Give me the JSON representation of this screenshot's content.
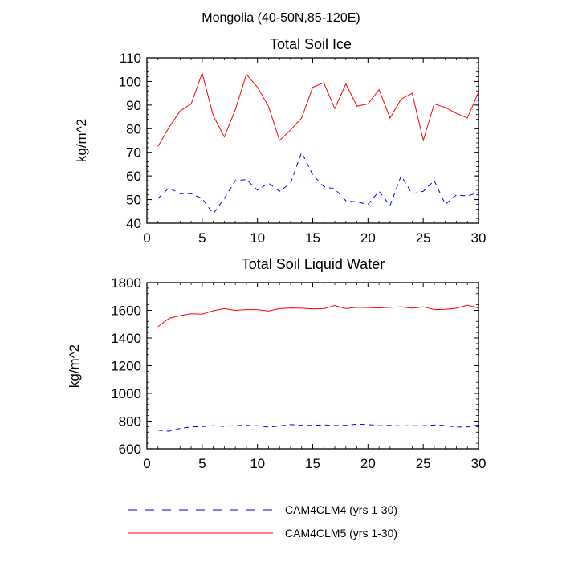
{
  "figure_title": "Mongolia (40-50N,85-120E)",
  "colors": {
    "clm4": "#0000ff",
    "clm5": "#ff0000",
    "axis": "#000000"
  },
  "chart_data": [
    {
      "type": "line",
      "title": "Total Soil Ice",
      "xlabel": "",
      "ylabel": "kg/m^2",
      "xlim": [
        0,
        30
      ],
      "ylim": [
        40,
        110
      ],
      "xticks": [
        0,
        5,
        10,
        15,
        20,
        25,
        30
      ],
      "yticks": [
        40,
        50,
        60,
        70,
        80,
        90,
        100,
        110
      ],
      "x": [
        1,
        2,
        3,
        4,
        5,
        6,
        7,
        8,
        9,
        10,
        11,
        12,
        13,
        14,
        15,
        16,
        17,
        18,
        19,
        20,
        21,
        22,
        23,
        24,
        25,
        26,
        27,
        28,
        29,
        30
      ],
      "series": [
        {
          "name": "CAM4CLM4 (yrs 1-30)",
          "style": "dashed",
          "color": "#0000ff",
          "values": [
            50.5,
            55,
            52.5,
            52.5,
            50.5,
            44,
            50.5,
            58,
            58.5,
            54,
            57,
            53.5,
            57,
            70,
            60.5,
            55.5,
            54.5,
            49.5,
            49,
            48,
            53.5,
            47.5,
            60,
            52.5,
            53.5,
            58,
            48,
            52,
            51.5,
            53
          ]
        },
        {
          "name": "CAM4CLM5 (yrs 1-30)",
          "style": "solid",
          "color": "#ff0000",
          "values": [
            72.5,
            80.5,
            87.5,
            90.5,
            103.5,
            85.5,
            76.5,
            88,
            103,
            97.5,
            89.5,
            75,
            79.5,
            84.5,
            97.5,
            99.5,
            88.5,
            99,
            89.5,
            90.5,
            96.5,
            84.5,
            92.5,
            95,
            75,
            90.5,
            89,
            86.5,
            84.5,
            95.5
          ]
        }
      ]
    },
    {
      "type": "line",
      "title": "Total Soil Liquid Water",
      "xlabel": "",
      "ylabel": "kg/m^2",
      "xlim": [
        0,
        30
      ],
      "ylim": [
        600,
        1800
      ],
      "xticks": [
        0,
        5,
        10,
        15,
        20,
        25,
        30
      ],
      "yticks": [
        600,
        800,
        1000,
        1200,
        1400,
        1600,
        1800
      ],
      "x": [
        1,
        2,
        3,
        4,
        5,
        6,
        7,
        8,
        9,
        10,
        11,
        12,
        13,
        14,
        15,
        16,
        17,
        18,
        19,
        20,
        21,
        22,
        23,
        24,
        25,
        26,
        27,
        28,
        29,
        30
      ],
      "series": [
        {
          "name": "CAM4CLM4 (yrs 1-30)",
          "style": "dashed",
          "color": "#0000ff",
          "values": [
            735,
            727,
            747,
            758,
            760,
            767,
            762,
            768,
            770,
            767,
            757,
            765,
            775,
            770,
            770,
            773,
            768,
            770,
            778,
            775,
            767,
            770,
            765,
            767,
            767,
            772,
            768,
            757,
            758,
            772
          ]
        },
        {
          "name": "CAM4CLM5 (yrs 1-30)",
          "style": "solid",
          "color": "#ff0000",
          "values": [
            1482,
            1542,
            1562,
            1575,
            1572,
            1597,
            1612,
            1600,
            1605,
            1605,
            1595,
            1612,
            1617,
            1615,
            1610,
            1612,
            1635,
            1612,
            1622,
            1620,
            1617,
            1622,
            1625,
            1615,
            1625,
            1605,
            1607,
            1615,
            1637,
            1617
          ]
        }
      ]
    }
  ],
  "legend": [
    {
      "label": "CAM4CLM4 (yrs 1-30)",
      "style": "dashed",
      "color": "#0000ff"
    },
    {
      "label": "CAM4CLM5 (yrs 1-30)",
      "style": "solid",
      "color": "#ff0000"
    }
  ]
}
